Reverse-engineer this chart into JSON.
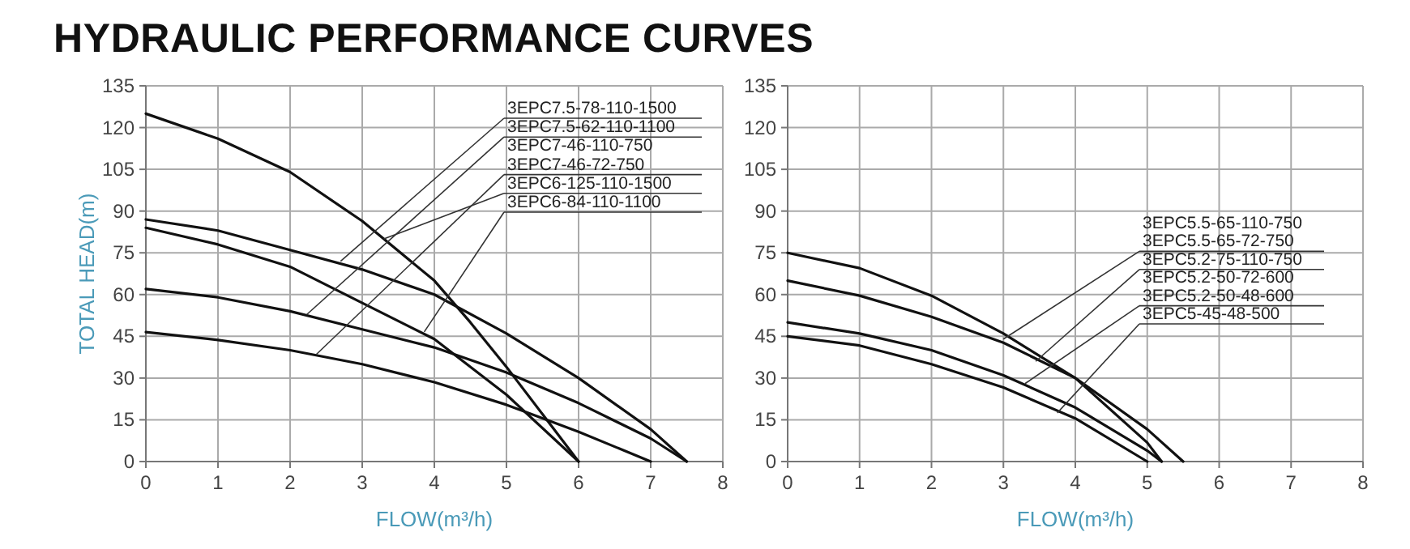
{
  "chart_data": [
    {
      "type": "line",
      "title": "HYDRAULIC PERFORMANCE CURVES",
      "xlabel": "FLOW(m³/h)",
      "ylabel": "TOTAL HEAD(m)",
      "xlim": [
        0,
        8
      ],
      "ylim": [
        0,
        135
      ],
      "xticks": [
        0,
        1,
        2,
        3,
        4,
        5,
        6,
        7,
        8
      ],
      "yticks": [
        0,
        15,
        30,
        45,
        60,
        75,
        90,
        105,
        120,
        135
      ],
      "grid": true,
      "marker": "none",
      "line_style": "solid",
      "series": [
        {
          "color": "#111111",
          "x": [
            0,
            1,
            2,
            3,
            4,
            4.5,
            5,
            5.5,
            6
          ],
          "values": [
            125,
            116,
            104,
            86.4,
            65,
            50,
            34,
            17,
            0
          ]
        },
        {
          "color": "#111111",
          "x": [
            0,
            1,
            2,
            3,
            4,
            5,
            6,
            7,
            7.5
          ],
          "values": [
            87,
            83,
            76,
            69,
            60,
            46,
            30,
            11.6,
            0
          ]
        },
        {
          "color": "#111111",
          "x": [
            0,
            1,
            2,
            3,
            4,
            5,
            6
          ],
          "values": [
            84,
            78,
            70,
            57,
            44,
            24,
            0
          ]
        },
        {
          "color": "#111111",
          "x": [
            0,
            1,
            2,
            3,
            4,
            5,
            6,
            7,
            7.5
          ],
          "values": [
            62,
            59,
            54,
            47.5,
            41,
            32,
            21,
            8.3,
            0
          ]
        },
        {
          "color": "#111111",
          "x": [
            0,
            1,
            2,
            3,
            4,
            5,
            6,
            7
          ],
          "values": [
            46.5,
            43.7,
            40,
            35,
            28.5,
            20.4,
            10.7,
            0
          ]
        }
      ],
      "annotations": [
        {
          "text": "3EPC7.5-78-110-1500",
          "x": 2.7,
          "y": 72
        },
        {
          "text": "3EPC7.5-62-110-1100",
          "x": 2.23,
          "y": 52.8
        },
        {
          "text": "3EPC7-46-110-750",
          "x": 2.36,
          "y": 38.4
        },
        {
          "text": "3EPC7-46-72-750",
          "x": 2.36,
          "y": 38.4
        },
        {
          "text": "3EPC6-125-110-1500",
          "x": 3.3,
          "y": 80
        },
        {
          "text": "3EPC6-84-110-1100",
          "x": 3.86,
          "y": 46.6
        }
      ]
    },
    {
      "type": "line",
      "xlabel": "FLOW(m³/h)",
      "xlim": [
        0,
        8
      ],
      "ylim": [
        0,
        135
      ],
      "xticks": [
        0,
        1,
        2,
        3,
        4,
        5,
        6,
        7,
        8
      ],
      "yticks": [
        0,
        15,
        30,
        45,
        60,
        75,
        90,
        105,
        120,
        135
      ],
      "grid": true,
      "marker": "none",
      "line_style": "solid",
      "series": [
        {
          "color": "#111111",
          "x": [
            0,
            1,
            2,
            3,
            4,
            5,
            5.2
          ],
          "values": [
            75,
            69.5,
            59.6,
            46,
            30,
            6.8,
            0
          ]
        },
        {
          "color": "#111111",
          "x": [
            0,
            1,
            2,
            3,
            4,
            5,
            5.5
          ],
          "values": [
            65,
            59.6,
            52,
            42.7,
            30,
            11.6,
            0
          ]
        },
        {
          "color": "#111111",
          "x": [
            0,
            1,
            2,
            3,
            4,
            5,
            5.2
          ],
          "values": [
            50,
            46,
            40,
            31,
            19.4,
            3.9,
            0
          ]
        },
        {
          "color": "#111111",
          "x": [
            0,
            1,
            2,
            3,
            4,
            5
          ],
          "values": [
            45,
            41.7,
            35,
            26.6,
            15.5,
            0
          ]
        }
      ],
      "annotations": [
        {
          "text": "3EPC5.5-65-110-750",
          "x": 3.0,
          "y": 44
        },
        {
          "text": "3EPC5.5-65-72-750",
          "x": 3.0,
          "y": 44
        },
        {
          "text": "3EPC5.2-75-110-750",
          "x": 3.45,
          "y": 36
        },
        {
          "text": "3EPC5.2-50-72-600",
          "x": 3.3,
          "y": 28
        },
        {
          "text": "3EPC5.2-50-48-600",
          "x": 3.3,
          "y": 28
        },
        {
          "text": "3EPC5-45-48-500",
          "x": 3.75,
          "y": 17.5
        }
      ]
    }
  ]
}
